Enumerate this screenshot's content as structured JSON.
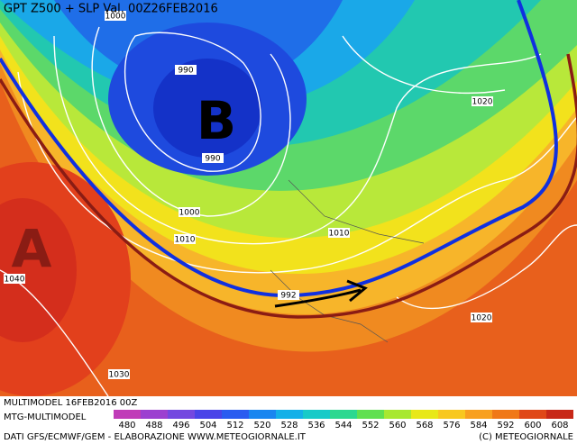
{
  "header": {
    "title": "GPT Z500 + SLP Val. 00Z26FEB2016"
  },
  "centers": [
    {
      "label": "B"
    },
    {
      "label": "A"
    }
  ],
  "isobar_labels": [
    1000,
    990,
    990,
    1020,
    1000,
    1010,
    1010,
    1040,
    992,
    1020,
    1030
  ],
  "footer": {
    "run": "MULTIMODEL 16FEB2016 00Z",
    "model": "MTG-MULTIMODEL",
    "credits": "DATI GFS/ECMWF/GEM - ELABORAZIONE WWW.METEOGIORNALE.IT",
    "copyright": "(C) METEOGIORNALE"
  },
  "scale": {
    "labels": [
      480,
      488,
      496,
      504,
      512,
      520,
      528,
      536,
      544,
      552,
      560,
      568,
      576,
      584,
      592,
      600,
      608
    ]
  }
}
